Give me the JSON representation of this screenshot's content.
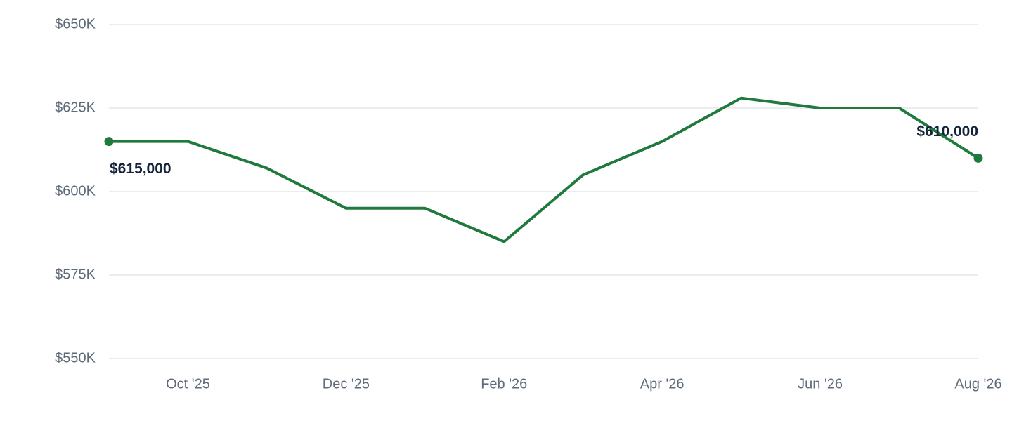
{
  "chart_data": {
    "type": "line",
    "categories": [
      null,
      "Oct '25",
      null,
      "Dec '25",
      null,
      "Feb '26",
      null,
      "Apr '26",
      null,
      "Jun '26",
      null,
      "Aug '26"
    ],
    "series": [
      {
        "color": "#217a3d",
        "values": [
          615000,
          615000,
          607000,
          595000,
          595000,
          585000,
          605000,
          615000,
          628000,
          625000,
          625000,
          610000
        ],
        "value_labels": [
          "$615,000",
          null,
          null,
          null,
          null,
          null,
          null,
          null,
          null,
          null,
          null,
          "$610,000"
        ]
      }
    ],
    "ylim": [
      550000,
      650000
    ],
    "yticks": [
      {
        "value": 550000,
        "label": "$550K"
      },
      {
        "value": 575000,
        "label": "$575K"
      },
      {
        "value": 600000,
        "label": "$600K"
      },
      {
        "value": 625000,
        "label": "$625K"
      },
      {
        "value": 650000,
        "label": "$650K"
      }
    ],
    "grid": true
  }
}
